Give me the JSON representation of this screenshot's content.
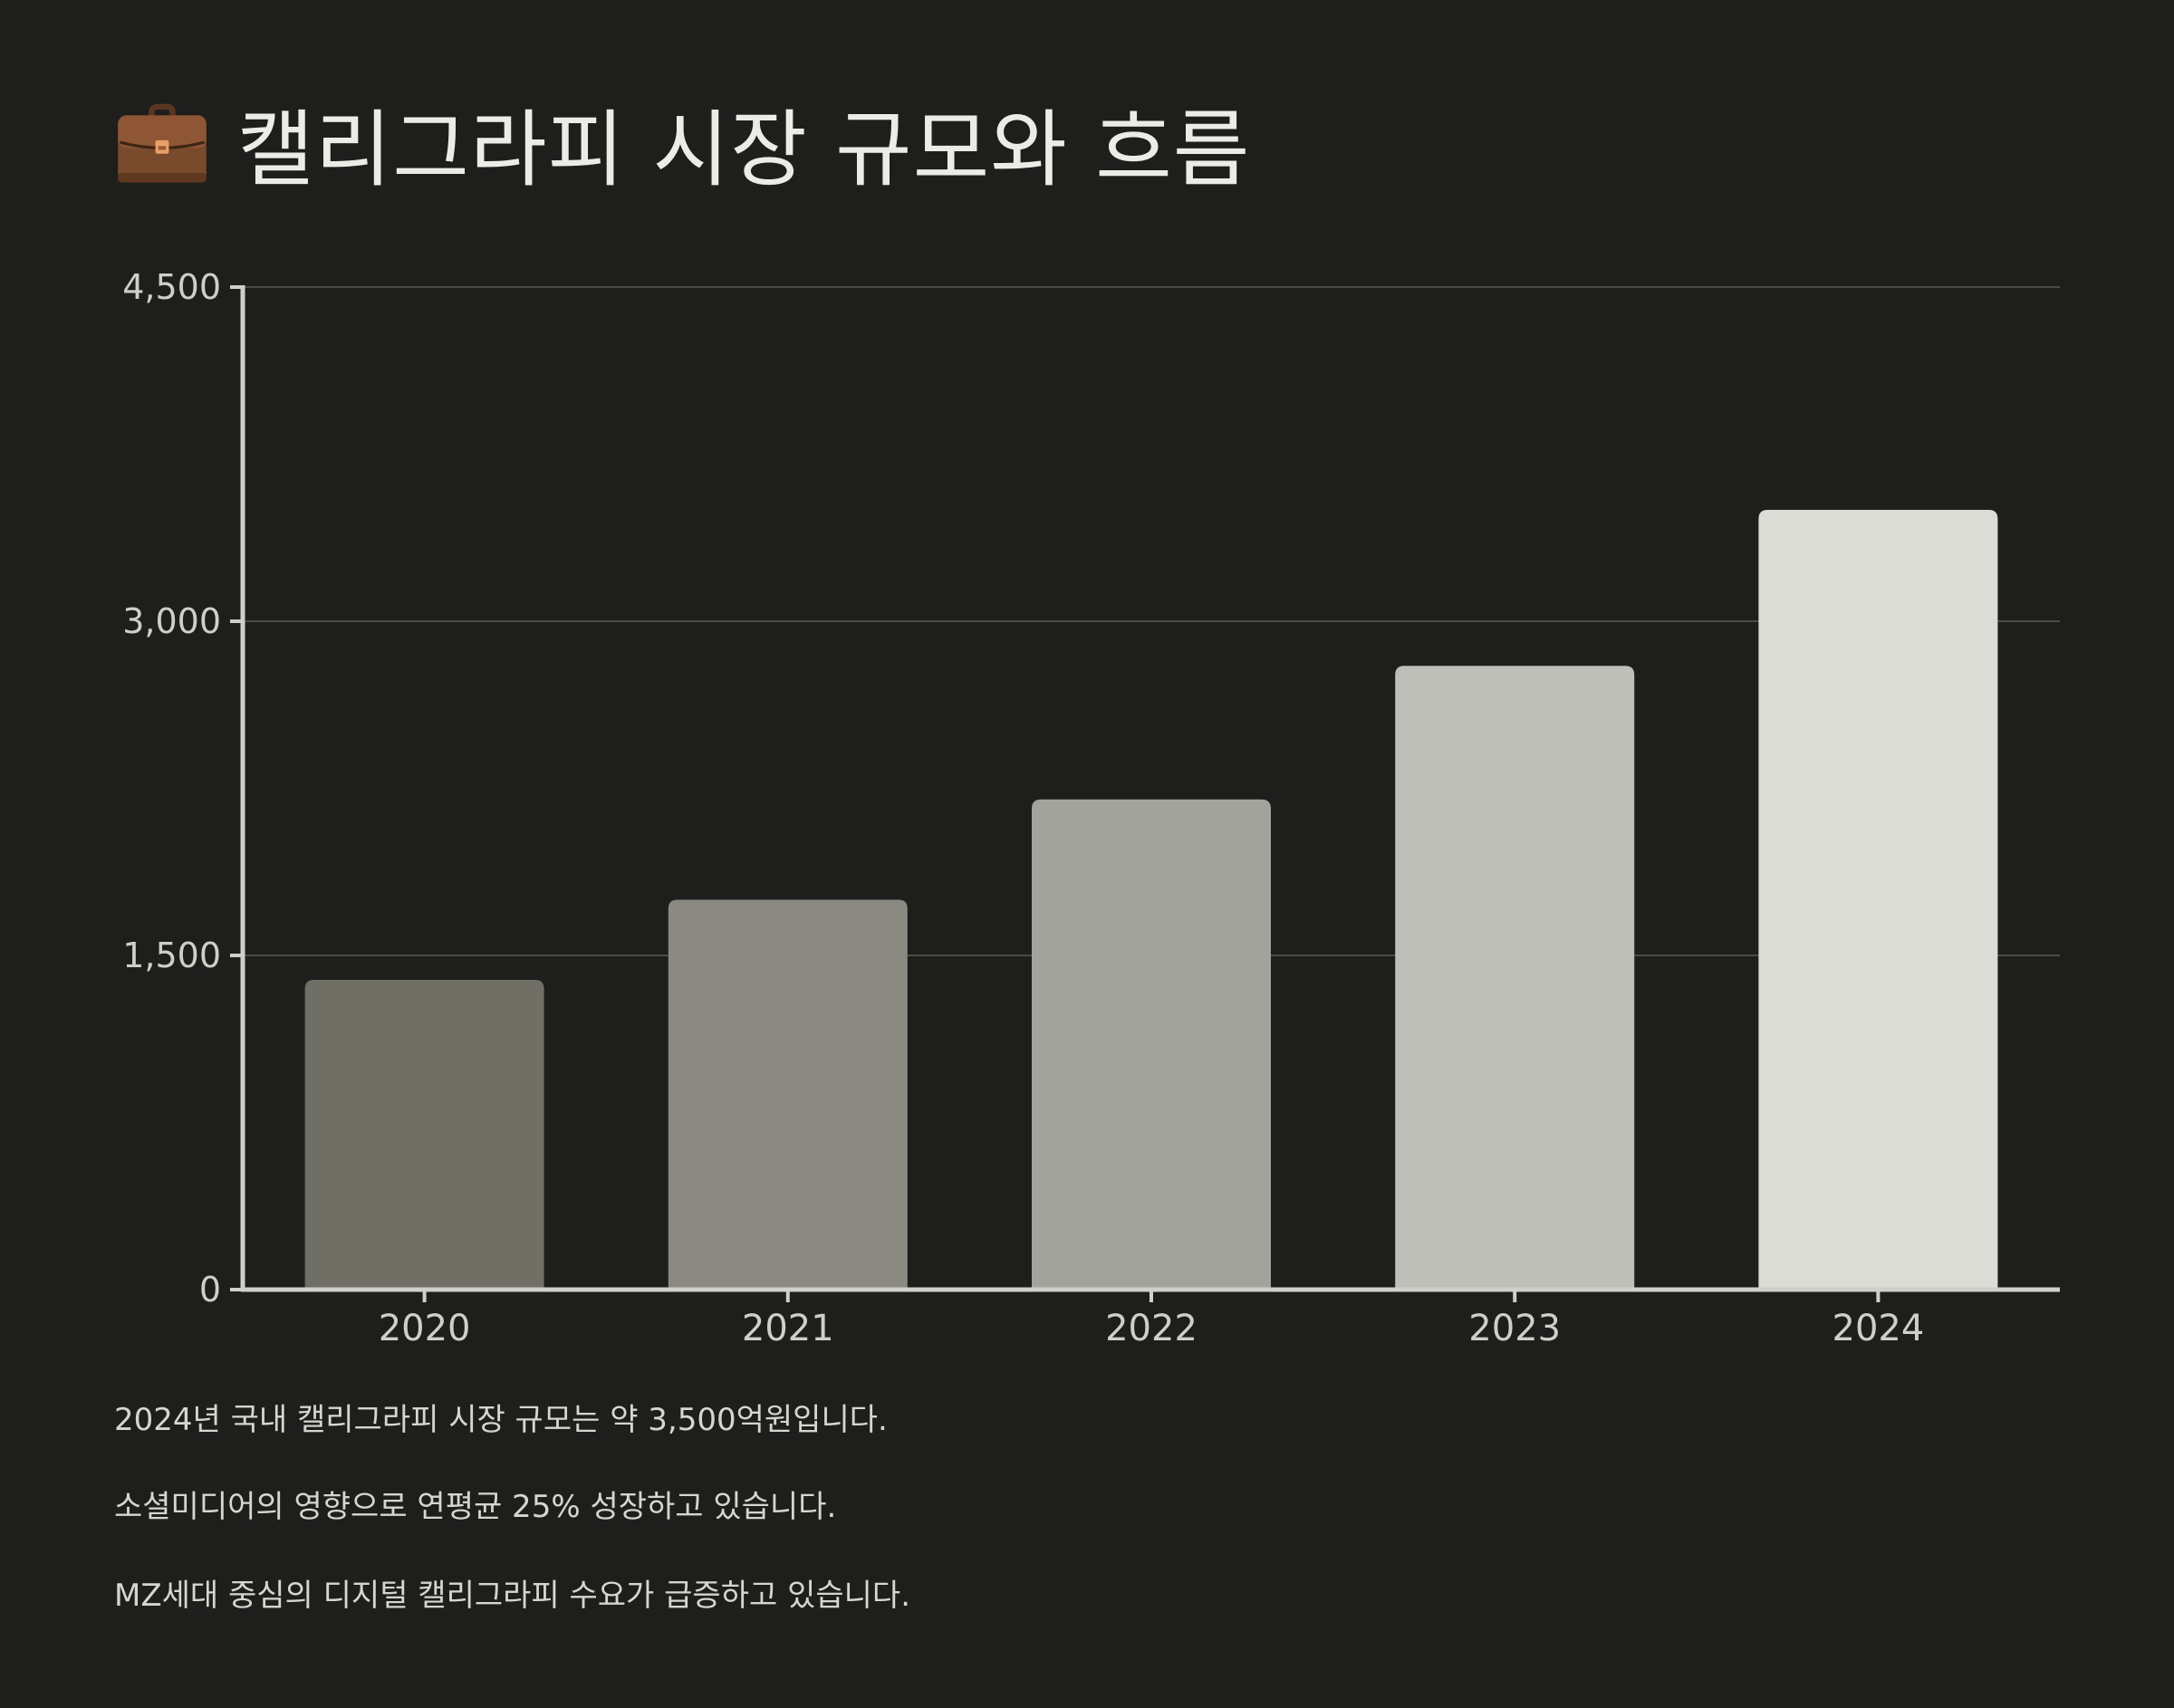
{
  "title": {
    "icon": "briefcase-icon",
    "text": "캘리그라피 시장 규모와 흐름"
  },
  "chart_data": {
    "type": "bar",
    "categories": [
      "2020",
      "2021",
      "2022",
      "2023",
      "2024"
    ],
    "values": [
      1390,
      1750,
      2200,
      2800,
      3500
    ],
    "ylim": [
      0,
      4500
    ],
    "yticks": [
      "0",
      "1,500",
      "3,000",
      "4,500"
    ],
    "ytick_values": [
      0,
      1500,
      3000,
      4500
    ],
    "grid": true,
    "xlabel": "",
    "ylabel": "",
    "bar_colors": [
      "#6f6f66",
      "#8a8a82",
      "#a3a39d",
      "#bfbfba",
      "#dcdcd7"
    ]
  },
  "captions": [
    "2024년 국내 캘리그라피 시장 규모는 약 3,500억원입니다.",
    "소셜미디어의 영향으로 연평균 25% 성장하고 있습니다.",
    "MZ세대 중심의 디지털 캘리그라피 수요가 급증하고 있습니다."
  ],
  "colors": {
    "background": "#1e1e1d",
    "axis": "#d0d0ca",
    "grid": "#4a4a47"
  }
}
